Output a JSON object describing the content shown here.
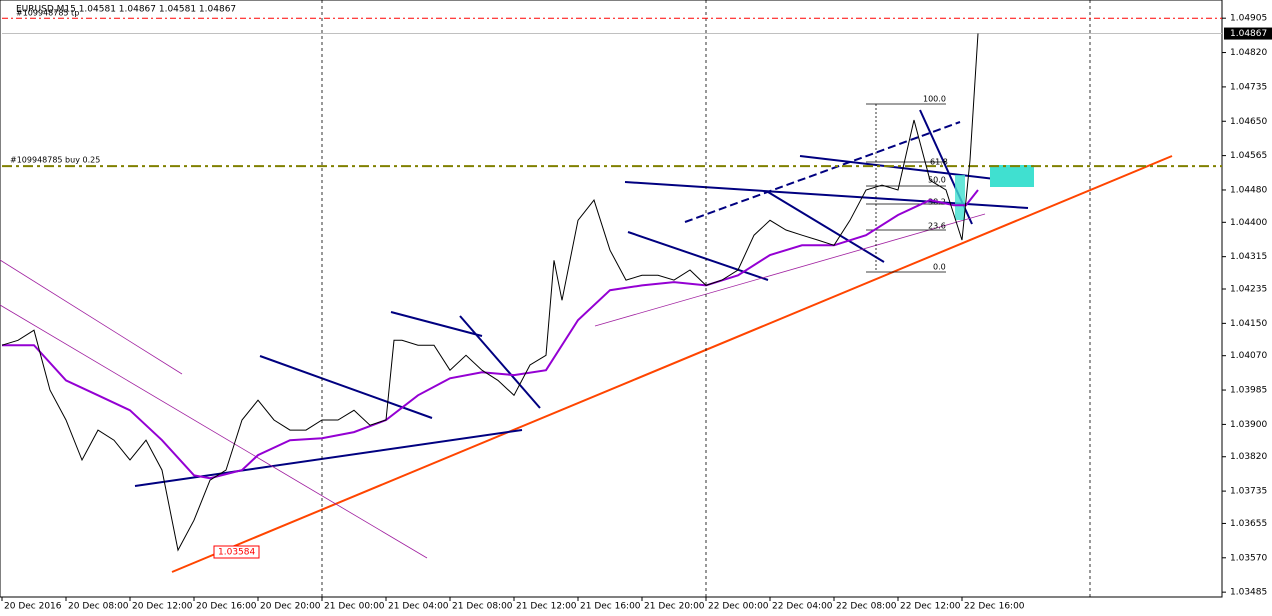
{
  "chart_data": {
    "type": "line",
    "title": "EURUSD,M15  1.04581 1.04867 1.04581 1.04867",
    "x": [
      0,
      4,
      8,
      12,
      16,
      20,
      24,
      28,
      32,
      36,
      40,
      44,
      48,
      52,
      56,
      60,
      64,
      68,
      72,
      76,
      80,
      84,
      88,
      92,
      96,
      98,
      100,
      104,
      108,
      112,
      116,
      120,
      124,
      128,
      132,
      136,
      138,
      140,
      144,
      148,
      152,
      156,
      160,
      164,
      168,
      172,
      176,
      180,
      184,
      188,
      192,
      196,
      200,
      204,
      208,
      212,
      216,
      220,
      224,
      228,
      232,
      236,
      240,
      242,
      244
    ],
    "series": [
      {
        "name": "EURUSD",
        "color": "#000000",
        "values": [
          1.04096,
          1.04108,
          1.04133,
          1.03985,
          1.03911,
          1.03812,
          1.03886,
          1.03861,
          1.03812,
          1.03861,
          1.03787,
          1.03589,
          1.03663,
          1.03762,
          1.03787,
          1.03911,
          1.0396,
          1.03911,
          1.03886,
          1.03886,
          1.03911,
          1.03911,
          1.03935,
          1.03898,
          1.03911,
          1.04108,
          1.04108,
          1.04096,
          1.04096,
          1.04034,
          1.04071,
          1.04034,
          1.04009,
          1.03972,
          1.04047,
          1.04071,
          1.04306,
          1.04207,
          1.04405,
          1.04455,
          1.04331,
          1.04257,
          1.04269,
          1.04269,
          1.04257,
          1.04282,
          1.04244,
          1.04257,
          1.04282,
          1.04368,
          1.04405,
          1.04381,
          1.04368,
          1.04356,
          1.04343,
          1.04405,
          1.0448,
          1.04492,
          1.0448,
          1.04653,
          1.04504,
          1.0448,
          1.04356,
          1.04554,
          1.04867
        ]
      }
    ],
    "ma": {
      "color": "#9400d3",
      "x": [
        0,
        8,
        16,
        24,
        32,
        40,
        48,
        52,
        60,
        64,
        72,
        80,
        88,
        96,
        104,
        112,
        120,
        128,
        136,
        144,
        152,
        160,
        168,
        176,
        184,
        192,
        200,
        208,
        216,
        224,
        232,
        238,
        241,
        244
      ],
      "values": [
        1.04096,
        1.04096,
        1.04009,
        1.03972,
        1.03935,
        1.03861,
        1.03774,
        1.03767,
        1.03787,
        1.03824,
        1.03861,
        1.03866,
        1.03881,
        1.03911,
        1.03972,
        1.04014,
        1.04029,
        1.04022,
        1.04034,
        1.04158,
        1.04232,
        1.04244,
        1.04252,
        1.04244,
        1.04269,
        1.04319,
        1.04343,
        1.04343,
        1.04368,
        1.04418,
        1.04455,
        1.04442,
        1.04442,
        1.0448
      ]
    },
    "xlim": [
      0,
      305
    ],
    "xticks": [
      {
        "value": 0,
        "label": "20 Dec 2016"
      },
      {
        "value": 16,
        "label": "20 Dec 08:00"
      },
      {
        "value": 32,
        "label": "20 Dec 12:00"
      },
      {
        "value": 48,
        "label": "20 Dec 16:00"
      },
      {
        "value": 64,
        "label": "20 Dec 20:00"
      },
      {
        "value": 80,
        "label": "21 Dec 00:00"
      },
      {
        "value": 96,
        "label": "21 Dec 04:00"
      },
      {
        "value": 112,
        "label": "21 Dec 08:00"
      },
      {
        "value": 128,
        "label": "21 Dec 12:00"
      },
      {
        "value": 144,
        "label": "21 Dec 16:00"
      },
      {
        "value": 160,
        "label": "21 Dec 20:00"
      },
      {
        "value": 176,
        "label": "22 Dec 00:00"
      },
      {
        "value": 192,
        "label": "22 Dec 04:00"
      },
      {
        "value": 208,
        "label": "22 Dec 08:00"
      },
      {
        "value": 224,
        "label": "22 Dec 12:00"
      },
      {
        "value": 240,
        "label": "22 Dec 16:00"
      }
    ],
    "day_lines": [
      80,
      176,
      272
    ],
    "ylim": [
      1.03473,
      1.0495
    ],
    "yticks": [
      1.04905,
      {
        "value": 1.0482,
        "label": "1.04820"
      },
      1.04735,
      {
        "value": 1.0465,
        "label": "1.04650"
      },
      1.04565,
      {
        "value": 1.0448,
        "label": "1.04480"
      },
      {
        "value": 1.044,
        "label": "1.04400"
      },
      1.04315,
      1.04235,
      {
        "value": 1.0415,
        "label": "1.04150"
      },
      {
        "value": 1.0407,
        "label": "1.04070"
      },
      1.03985,
      {
        "value": 1.039,
        "label": "1.03900"
      },
      {
        "value": 1.0382,
        "label": "1.03820"
      },
      1.03735,
      1.03655,
      {
        "value": 1.0357,
        "label": "1.03570"
      },
      1.03485
    ],
    "current_price": {
      "value": 1.04867,
      "label": "1.04867"
    },
    "order": {
      "label": "#109948785 buy 0.25",
      "price": 1.04539,
      "color": "#808000"
    },
    "tp_line": {
      "label": "#109948785 tp",
      "price": 1.04905,
      "color": "#ff0000"
    },
    "low_label": "1.03584",
    "fib_levels": [
      "100.0",
      "61.8",
      "50.0",
      "38.2",
      "23.6",
      "0.0"
    ]
  }
}
